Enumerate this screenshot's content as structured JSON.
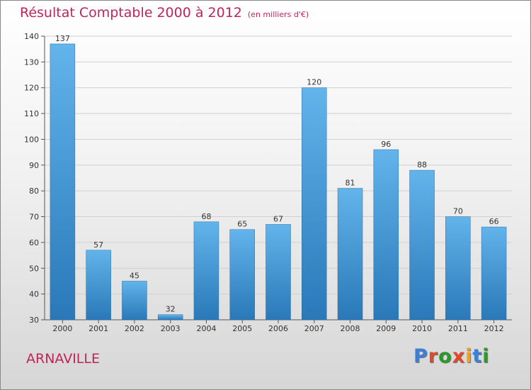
{
  "header": {
    "title": "Résultat Comptable 2000 à 2012",
    "unit": "(en milliers d'€)"
  },
  "footer": {
    "town": "ARNAVILLE",
    "logo_text": "Proxiti"
  },
  "colors": {
    "title": "#c0245a",
    "bar_light": "#62b4eb",
    "bar_dark": "#2a78b8",
    "grid": "#d0d0d0",
    "logo": [
      "#3b7fd6",
      "#e04a2a",
      "#2a9a2a",
      "#e04a2a",
      "#f0a020",
      "#3b7fd6",
      "#2a9a2a"
    ]
  },
  "chart_data": {
    "type": "bar",
    "title": "Résultat Comptable 2000 à 2012",
    "subtitle": "(en milliers d'€)",
    "xlabel": "",
    "ylabel": "",
    "categories": [
      "2000",
      "2001",
      "2002",
      "2003",
      "2004",
      "2005",
      "2006",
      "2007",
      "2008",
      "2009",
      "2010",
      "2011",
      "2012"
    ],
    "values": [
      137,
      57,
      45,
      32,
      68,
      65,
      67,
      120,
      81,
      96,
      88,
      70,
      66
    ],
    "ylim": [
      30,
      140
    ],
    "yticks": [
      30,
      40,
      50,
      60,
      70,
      80,
      90,
      100,
      110,
      120,
      130,
      140
    ],
    "grid": true,
    "legend": "none"
  }
}
